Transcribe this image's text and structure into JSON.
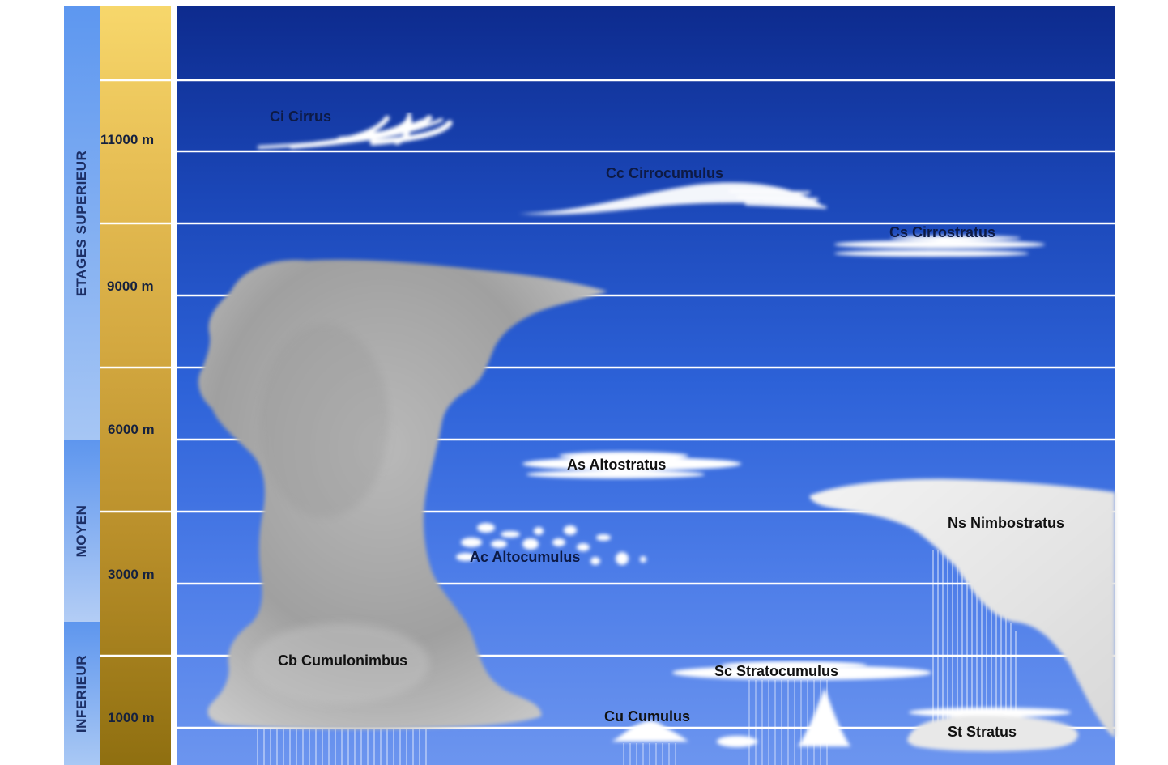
{
  "stages": [
    {
      "key": "superieur",
      "label": "ETAGES SUPERIEUR"
    },
    {
      "key": "moyen",
      "label": "MOYEN"
    },
    {
      "key": "inferieur",
      "label": "INFERIEUR"
    }
  ],
  "altitudes": [
    "11000 m",
    "9000 m",
    "6000 m",
    "3000 m",
    "1000 m"
  ],
  "clouds": {
    "cirrus": "Ci Cirrus",
    "cirrocumulus": "Cc Cirrocumulus",
    "cirrostratus": "Cs Cirrostratus",
    "altostratus": "As Altostratus",
    "altocumulus": "Ac  Altocumulus",
    "nimbostratus": "Ns Nimbostratus",
    "cumulonimbus": "Cb Cumulonimbus",
    "stratocumulus": "Sc Stratocumulus",
    "cumulus": "Cu Cumulus",
    "stratus": "St Stratus"
  },
  "colors": {
    "sky_top": "#0d2b8e",
    "sky_bottom": "#6c95ef",
    "stage_band": "#5d97f0",
    "altitude_column": "#d3a840",
    "grid_line": "#ffffff",
    "cumulonimbus": "#a8a8a8"
  }
}
